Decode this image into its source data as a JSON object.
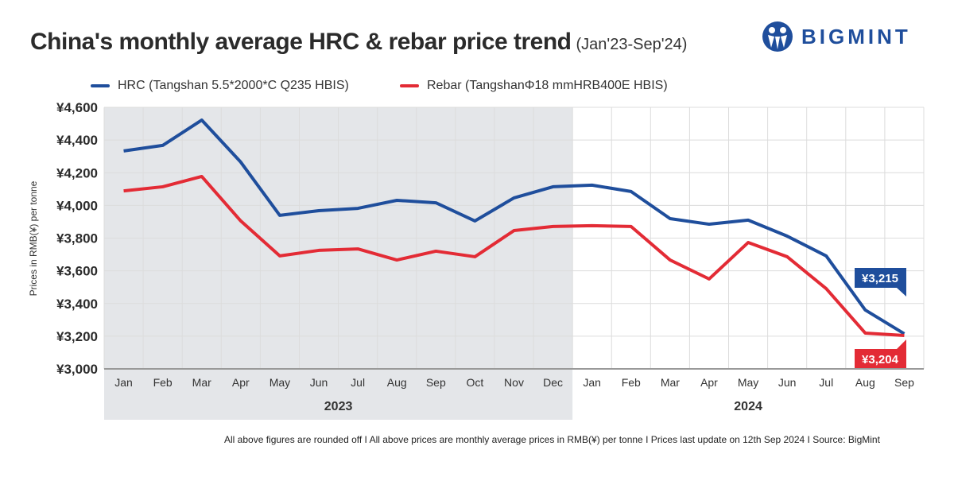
{
  "title": "China's monthly average HRC & rebar price trend",
  "subtitle": "(Jan'23-Sep'24)",
  "logo": {
    "text": "BIGMINT",
    "color": "#1f4e9c"
  },
  "footer": "All above figures are rounded off  I  All above prices are monthly average prices in RMB(¥) per tonne  I  Prices last update on 12th Sep 2024  I  Source: BigMint",
  "chart_data": {
    "type": "line",
    "ylabel": "Prices in RMB(¥) per tonne",
    "ylim": [
      3000,
      4600
    ],
    "yticks": [
      "¥3,000",
      "¥3,200",
      "¥3,400",
      "¥3,600",
      "¥3,800",
      "¥4,000",
      "¥4,200",
      "¥4,400",
      "¥4,600"
    ],
    "ytick_values": [
      3000,
      3200,
      3400,
      3600,
      3800,
      4000,
      4200,
      4400,
      4600
    ],
    "categories": [
      "Jan",
      "Feb",
      "Mar",
      "Apr",
      "May",
      "Jun",
      "Jul",
      "Aug",
      "Sep",
      "Oct",
      "Nov",
      "Dec",
      "Jan",
      "Feb",
      "Mar",
      "Apr",
      "May",
      "Jun",
      "Jul",
      "Aug",
      "Sep"
    ],
    "year_groups": [
      {
        "label": "2023",
        "months": 12,
        "shaded": true,
        "shade_color": "#e4e6e9"
      },
      {
        "label": "2024",
        "months": 9,
        "shaded": false
      }
    ],
    "grid": true,
    "legend_position": "top",
    "series": [
      {
        "name": "HRC (Tangshan 5.5*2000*C Q235 HBIS)",
        "color": "#1f4e9c",
        "values": [
          4333,
          4367,
          4522,
          4265,
          3939,
          3968,
          3982,
          4031,
          4016,
          3905,
          4046,
          4114,
          4124,
          4085,
          3919,
          3885,
          3910,
          3812,
          3691,
          3360,
          3215
        ],
        "end_label": "¥3,215"
      },
      {
        "name": "Rebar (TangshanΦ18 mmHRB400E HBIS)",
        "color": "#e32b35",
        "values": [
          4089,
          4114,
          4177,
          3905,
          3691,
          3725,
          3734,
          3666,
          3720,
          3686,
          3846,
          3871,
          3876,
          3871,
          3666,
          3550,
          3773,
          3686,
          3491,
          3219,
          3204
        ],
        "end_label": "¥3,204"
      }
    ]
  }
}
